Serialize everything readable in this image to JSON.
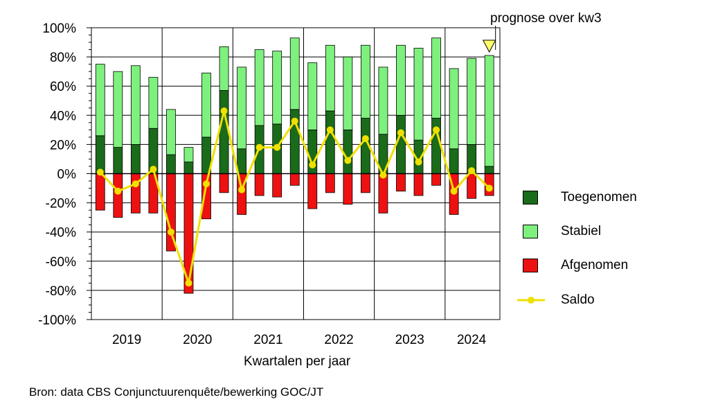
{
  "chart_data": {
    "type": "bar",
    "stacked": true,
    "title": "",
    "xlabel": "Kwartalen per jaar",
    "ylabel": "",
    "ylim": [
      -100,
      100
    ],
    "yticks": [
      "100%",
      "80%",
      "60%",
      "40%",
      "20%",
      "0%",
      "-20%",
      "-40%",
      "-60%",
      "-80%",
      "-100%"
    ],
    "years": [
      "2019",
      "2020",
      "2021",
      "2022",
      "2023",
      "2024"
    ],
    "categories": [
      "2019 Q1",
      "2019 Q2",
      "2019 Q3",
      "2019 Q4",
      "2020 Q1",
      "2020 Q2",
      "2020 Q3",
      "2020 Q4",
      "2021 Q1",
      "2021 Q2",
      "2021 Q3",
      "2021 Q4",
      "2022 Q1",
      "2022 Q2",
      "2022 Q3",
      "2022 Q4",
      "2023 Q1",
      "2023 Q2",
      "2023 Q3",
      "2023 Q4",
      "2024 Q1",
      "2024 Q2",
      "2024 Q3"
    ],
    "series": [
      {
        "name": "Toegenomen",
        "color": "#1a6b1a",
        "values": [
          26,
          18,
          20,
          31,
          13,
          8,
          25,
          57,
          17,
          33,
          34,
          44,
          30,
          43,
          30,
          38,
          27,
          40,
          23,
          38,
          17,
          20,
          5
        ]
      },
      {
        "name": "Stabiel",
        "color": "#7ef07e",
        "values": [
          49,
          52,
          54,
          35,
          31,
          10,
          44,
          30,
          56,
          52,
          50,
          49,
          46,
          45,
          50,
          50,
          46,
          48,
          63,
          55,
          55,
          59,
          76
        ]
      },
      {
        "name": "Afgenomen",
        "color": "#ee1111",
        "values": [
          -25,
          -30,
          -27,
          -27,
          -53,
          -82,
          -31,
          -13,
          -28,
          -15,
          -16,
          -8,
          -24,
          -13,
          -21,
          -13,
          -27,
          -12,
          -15,
          -8,
          -28,
          -17,
          -15
        ]
      },
      {
        "name": "Saldo",
        "type": "line",
        "color": "#f0e000",
        "values": [
          1,
          -12,
          -7,
          3,
          -40,
          -75,
          -7,
          43,
          -11,
          18,
          18,
          36,
          6,
          30,
          9,
          24,
          -1,
          28,
          8,
          30,
          -12,
          2,
          -10
        ]
      }
    ],
    "annotation": "prognose over kw3",
    "grid": true,
    "legend_position": "right"
  },
  "source_text": "Bron: data CBS Conjunctuurenquête/bewerking GOC/JT"
}
